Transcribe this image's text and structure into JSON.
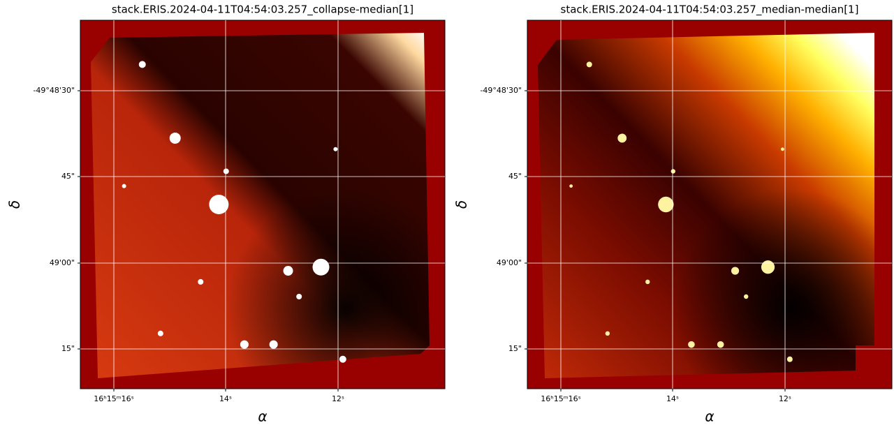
{
  "chart_data": [
    {
      "type": "image",
      "title": "stack.ERIS.2024-04-11T04:54:03.257_collapse-median[1]",
      "xlabel": "α",
      "ylabel": "δ",
      "xticks": [
        "16ʰ15ᵐ16ˢ",
        "14ˢ",
        "12ˢ"
      ],
      "yticks": [
        "-49°48'30\"",
        "45\"",
        "49'00\"",
        "15\""
      ],
      "grid": true
    },
    {
      "type": "image",
      "title": "stack.ERIS.2024-04-11T04:54:03.257_median-median[1]",
      "xlabel": "α",
      "ylabel": "δ",
      "xticks": [
        "16ʰ15ᵐ16ˢ",
        "14ˢ",
        "12ˢ"
      ],
      "yticks": [
        "-49°48'30\"",
        "45\"",
        "49'00\"",
        "15\""
      ],
      "grid": true
    }
  ]
}
